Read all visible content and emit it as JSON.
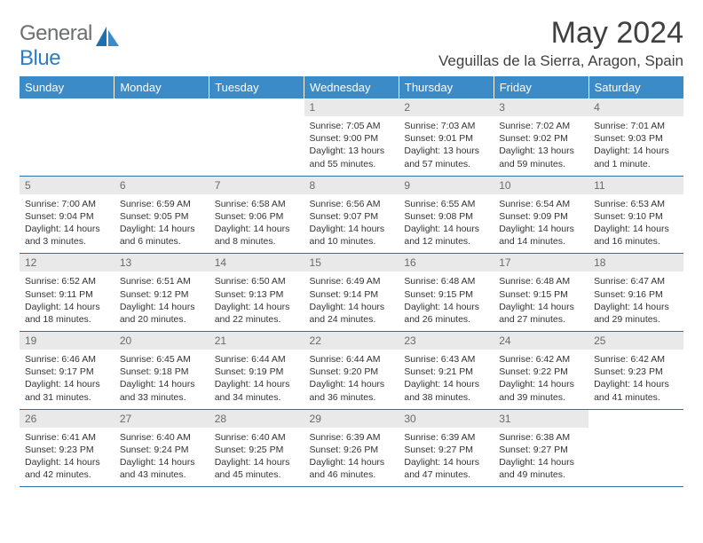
{
  "brand": {
    "part1": "General",
    "part2": "Blue"
  },
  "title": "May 2024",
  "location": "Veguillas de la Sierra, Aragon, Spain",
  "colors": {
    "header_bg": "#3b8bc9",
    "header_text": "#ffffff",
    "daynum_bg": "#e9e9e9",
    "daynum_text": "#6a6a6a",
    "body_text": "#333333",
    "rule": "#2b6fa3",
    "brand_gray": "#6d6e6f",
    "brand_blue": "#2b7ec1"
  },
  "typography": {
    "title_fontsize": 34,
    "location_fontsize": 17,
    "dayhead_fontsize": 13,
    "daynum_fontsize": 12,
    "body_fontsize": 10.5
  },
  "day_headers": [
    "Sunday",
    "Monday",
    "Tuesday",
    "Wednesday",
    "Thursday",
    "Friday",
    "Saturday"
  ],
  "weeks": [
    [
      {
        "n": "",
        "sr": "",
        "ss": "",
        "dl": ""
      },
      {
        "n": "",
        "sr": "",
        "ss": "",
        "dl": ""
      },
      {
        "n": "",
        "sr": "",
        "ss": "",
        "dl": ""
      },
      {
        "n": "1",
        "sr": "Sunrise: 7:05 AM",
        "ss": "Sunset: 9:00 PM",
        "dl": "Daylight: 13 hours and 55 minutes."
      },
      {
        "n": "2",
        "sr": "Sunrise: 7:03 AM",
        "ss": "Sunset: 9:01 PM",
        "dl": "Daylight: 13 hours and 57 minutes."
      },
      {
        "n": "3",
        "sr": "Sunrise: 7:02 AM",
        "ss": "Sunset: 9:02 PM",
        "dl": "Daylight: 13 hours and 59 minutes."
      },
      {
        "n": "4",
        "sr": "Sunrise: 7:01 AM",
        "ss": "Sunset: 9:03 PM",
        "dl": "Daylight: 14 hours and 1 minute."
      }
    ],
    [
      {
        "n": "5",
        "sr": "Sunrise: 7:00 AM",
        "ss": "Sunset: 9:04 PM",
        "dl": "Daylight: 14 hours and 3 minutes."
      },
      {
        "n": "6",
        "sr": "Sunrise: 6:59 AM",
        "ss": "Sunset: 9:05 PM",
        "dl": "Daylight: 14 hours and 6 minutes."
      },
      {
        "n": "7",
        "sr": "Sunrise: 6:58 AM",
        "ss": "Sunset: 9:06 PM",
        "dl": "Daylight: 14 hours and 8 minutes."
      },
      {
        "n": "8",
        "sr": "Sunrise: 6:56 AM",
        "ss": "Sunset: 9:07 PM",
        "dl": "Daylight: 14 hours and 10 minutes."
      },
      {
        "n": "9",
        "sr": "Sunrise: 6:55 AM",
        "ss": "Sunset: 9:08 PM",
        "dl": "Daylight: 14 hours and 12 minutes."
      },
      {
        "n": "10",
        "sr": "Sunrise: 6:54 AM",
        "ss": "Sunset: 9:09 PM",
        "dl": "Daylight: 14 hours and 14 minutes."
      },
      {
        "n": "11",
        "sr": "Sunrise: 6:53 AM",
        "ss": "Sunset: 9:10 PM",
        "dl": "Daylight: 14 hours and 16 minutes."
      }
    ],
    [
      {
        "n": "12",
        "sr": "Sunrise: 6:52 AM",
        "ss": "Sunset: 9:11 PM",
        "dl": "Daylight: 14 hours and 18 minutes."
      },
      {
        "n": "13",
        "sr": "Sunrise: 6:51 AM",
        "ss": "Sunset: 9:12 PM",
        "dl": "Daylight: 14 hours and 20 minutes."
      },
      {
        "n": "14",
        "sr": "Sunrise: 6:50 AM",
        "ss": "Sunset: 9:13 PM",
        "dl": "Daylight: 14 hours and 22 minutes."
      },
      {
        "n": "15",
        "sr": "Sunrise: 6:49 AM",
        "ss": "Sunset: 9:14 PM",
        "dl": "Daylight: 14 hours and 24 minutes."
      },
      {
        "n": "16",
        "sr": "Sunrise: 6:48 AM",
        "ss": "Sunset: 9:15 PM",
        "dl": "Daylight: 14 hours and 26 minutes."
      },
      {
        "n": "17",
        "sr": "Sunrise: 6:48 AM",
        "ss": "Sunset: 9:15 PM",
        "dl": "Daylight: 14 hours and 27 minutes."
      },
      {
        "n": "18",
        "sr": "Sunrise: 6:47 AM",
        "ss": "Sunset: 9:16 PM",
        "dl": "Daylight: 14 hours and 29 minutes."
      }
    ],
    [
      {
        "n": "19",
        "sr": "Sunrise: 6:46 AM",
        "ss": "Sunset: 9:17 PM",
        "dl": "Daylight: 14 hours and 31 minutes."
      },
      {
        "n": "20",
        "sr": "Sunrise: 6:45 AM",
        "ss": "Sunset: 9:18 PM",
        "dl": "Daylight: 14 hours and 33 minutes."
      },
      {
        "n": "21",
        "sr": "Sunrise: 6:44 AM",
        "ss": "Sunset: 9:19 PM",
        "dl": "Daylight: 14 hours and 34 minutes."
      },
      {
        "n": "22",
        "sr": "Sunrise: 6:44 AM",
        "ss": "Sunset: 9:20 PM",
        "dl": "Daylight: 14 hours and 36 minutes."
      },
      {
        "n": "23",
        "sr": "Sunrise: 6:43 AM",
        "ss": "Sunset: 9:21 PM",
        "dl": "Daylight: 14 hours and 38 minutes."
      },
      {
        "n": "24",
        "sr": "Sunrise: 6:42 AM",
        "ss": "Sunset: 9:22 PM",
        "dl": "Daylight: 14 hours and 39 minutes."
      },
      {
        "n": "25",
        "sr": "Sunrise: 6:42 AM",
        "ss": "Sunset: 9:23 PM",
        "dl": "Daylight: 14 hours and 41 minutes."
      }
    ],
    [
      {
        "n": "26",
        "sr": "Sunrise: 6:41 AM",
        "ss": "Sunset: 9:23 PM",
        "dl": "Daylight: 14 hours and 42 minutes."
      },
      {
        "n": "27",
        "sr": "Sunrise: 6:40 AM",
        "ss": "Sunset: 9:24 PM",
        "dl": "Daylight: 14 hours and 43 minutes."
      },
      {
        "n": "28",
        "sr": "Sunrise: 6:40 AM",
        "ss": "Sunset: 9:25 PM",
        "dl": "Daylight: 14 hours and 45 minutes."
      },
      {
        "n": "29",
        "sr": "Sunrise: 6:39 AM",
        "ss": "Sunset: 9:26 PM",
        "dl": "Daylight: 14 hours and 46 minutes."
      },
      {
        "n": "30",
        "sr": "Sunrise: 6:39 AM",
        "ss": "Sunset: 9:27 PM",
        "dl": "Daylight: 14 hours and 47 minutes."
      },
      {
        "n": "31",
        "sr": "Sunrise: 6:38 AM",
        "ss": "Sunset: 9:27 PM",
        "dl": "Daylight: 14 hours and 49 minutes."
      },
      {
        "n": "",
        "sr": "",
        "ss": "",
        "dl": ""
      }
    ]
  ]
}
